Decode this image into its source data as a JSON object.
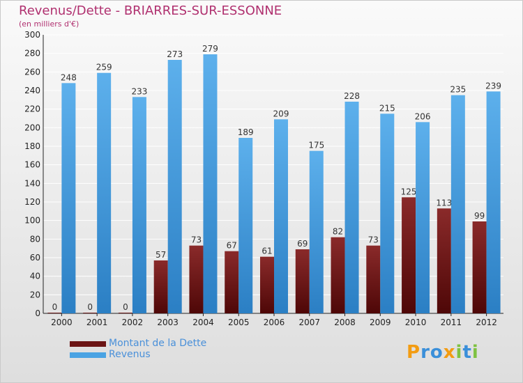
{
  "title": "Revenus/Dette - BRIARRES-SUR-ESSONNE",
  "subtitle": "(en milliers d'€)",
  "logo_letters": [
    {
      "ch": "P",
      "color": "#f39c12"
    },
    {
      "ch": "r",
      "color": "#3a8fd9"
    },
    {
      "ch": "o",
      "color": "#3a8fd9"
    },
    {
      "ch": "x",
      "color": "#f39c12"
    },
    {
      "ch": "i",
      "color": "#7fc241"
    },
    {
      "ch": "t",
      "color": "#3a8fd9"
    },
    {
      "ch": "i",
      "color": "#7fc241"
    }
  ],
  "legend": [
    {
      "label": "Montant de la Dette",
      "color": "#6b1414"
    },
    {
      "label": "Revenus",
      "color": "#4aa3e3"
    }
  ],
  "chart_data": {
    "type": "bar",
    "title": "Revenus/Dette - BRIARRES-SUR-ESSONNE",
    "subtitle": "(en milliers d'€)",
    "xlabel": "",
    "ylabel": "",
    "categories": [
      "2000",
      "2001",
      "2002",
      "2003",
      "2004",
      "2005",
      "2006",
      "2007",
      "2008",
      "2009",
      "2010",
      "2011",
      "2012"
    ],
    "series": [
      {
        "name": "Montant de la Dette",
        "color": "#6b1414",
        "values": [
          0,
          0,
          0,
          57,
          73,
          67,
          61,
          69,
          82,
          73,
          125,
          113,
          99
        ]
      },
      {
        "name": "Revenus",
        "color": "#4aa3e3",
        "values": [
          248,
          259,
          233,
          273,
          279,
          189,
          209,
          175,
          228,
          215,
          206,
          235,
          239
        ]
      }
    ],
    "ylim": [
      0,
      300
    ],
    "ytick_step": 20,
    "grid": true,
    "legend_position": "bottom-left"
  }
}
